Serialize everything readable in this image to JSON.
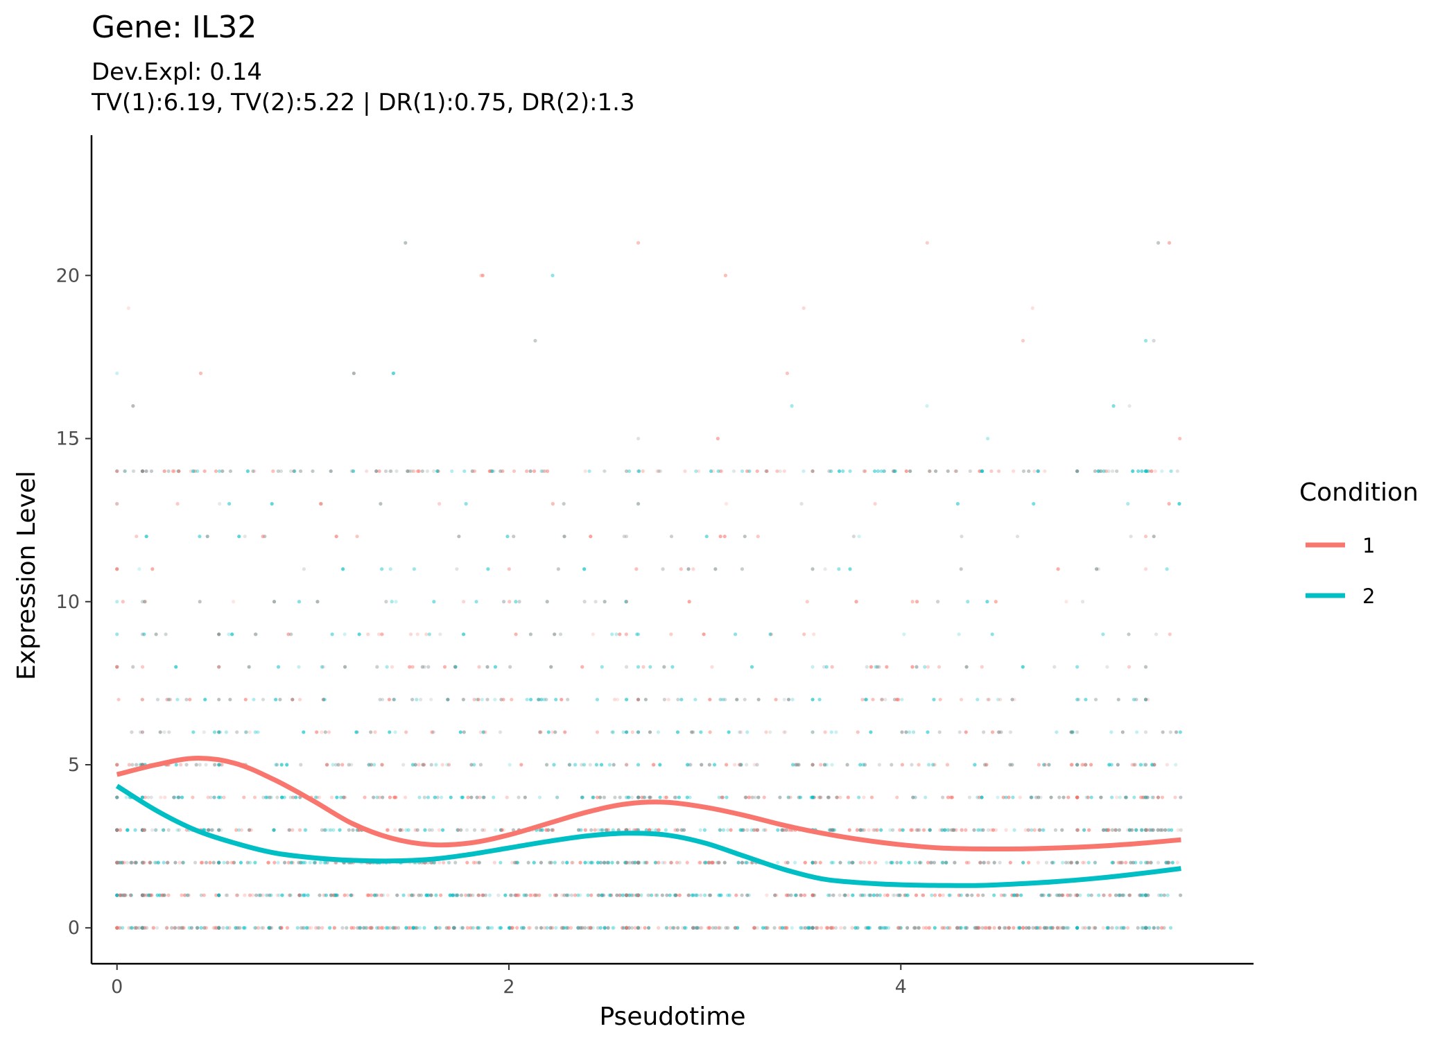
{
  "chart_data": {
    "type": "line",
    "title": "Gene: IL32",
    "subtitle_lines": [
      "Dev.Expl: 0.14",
      "TV(1):6.19, TV(2):5.22 | DR(1):0.75, DR(2):1.3"
    ],
    "xlabel": "Pseudotime",
    "ylabel": "Expression Level",
    "xlim": [
      -0.13,
      5.8
    ],
    "ylim": [
      -1.1,
      24.3
    ],
    "x_ticks": [
      0,
      2,
      4
    ],
    "y_ticks": [
      0,
      5,
      10,
      15,
      20
    ],
    "grid": false,
    "legend": {
      "title": "Condition",
      "position": "right",
      "entries": [
        {
          "label": "1",
          "color": "#F8766D"
        },
        {
          "label": "2",
          "color": "#00BFC4"
        }
      ]
    },
    "series": [
      {
        "name": "1",
        "color": "#F8766D",
        "x": [
          0,
          0.2,
          0.4,
          0.6,
          0.8,
          1.0,
          1.2,
          1.4,
          1.6,
          1.8,
          2.0,
          2.2,
          2.4,
          2.6,
          2.8,
          3.0,
          3.2,
          3.4,
          3.6,
          3.8,
          4.0,
          4.2,
          4.4,
          4.6,
          4.8,
          5.0,
          5.2,
          5.43
        ],
        "values": [
          4.7,
          5.0,
          5.2,
          5.05,
          4.55,
          3.9,
          3.2,
          2.75,
          2.55,
          2.6,
          2.85,
          3.2,
          3.55,
          3.8,
          3.85,
          3.7,
          3.45,
          3.15,
          2.9,
          2.7,
          2.55,
          2.45,
          2.42,
          2.42,
          2.45,
          2.5,
          2.58,
          2.7
        ]
      },
      {
        "name": "2",
        "color": "#00BFC4",
        "x": [
          0,
          0.2,
          0.4,
          0.6,
          0.8,
          1.0,
          1.2,
          1.4,
          1.6,
          1.8,
          2.0,
          2.2,
          2.4,
          2.6,
          2.8,
          3.0,
          3.2,
          3.4,
          3.6,
          3.8,
          4.0,
          4.2,
          4.4,
          4.6,
          4.8,
          5.0,
          5.2,
          5.43
        ],
        "values": [
          4.35,
          3.6,
          3.0,
          2.6,
          2.3,
          2.15,
          2.07,
          2.05,
          2.1,
          2.25,
          2.45,
          2.65,
          2.82,
          2.9,
          2.85,
          2.6,
          2.2,
          1.8,
          1.5,
          1.38,
          1.32,
          1.3,
          1.3,
          1.35,
          1.42,
          1.52,
          1.65,
          1.82
        ]
      }
    ]
  }
}
